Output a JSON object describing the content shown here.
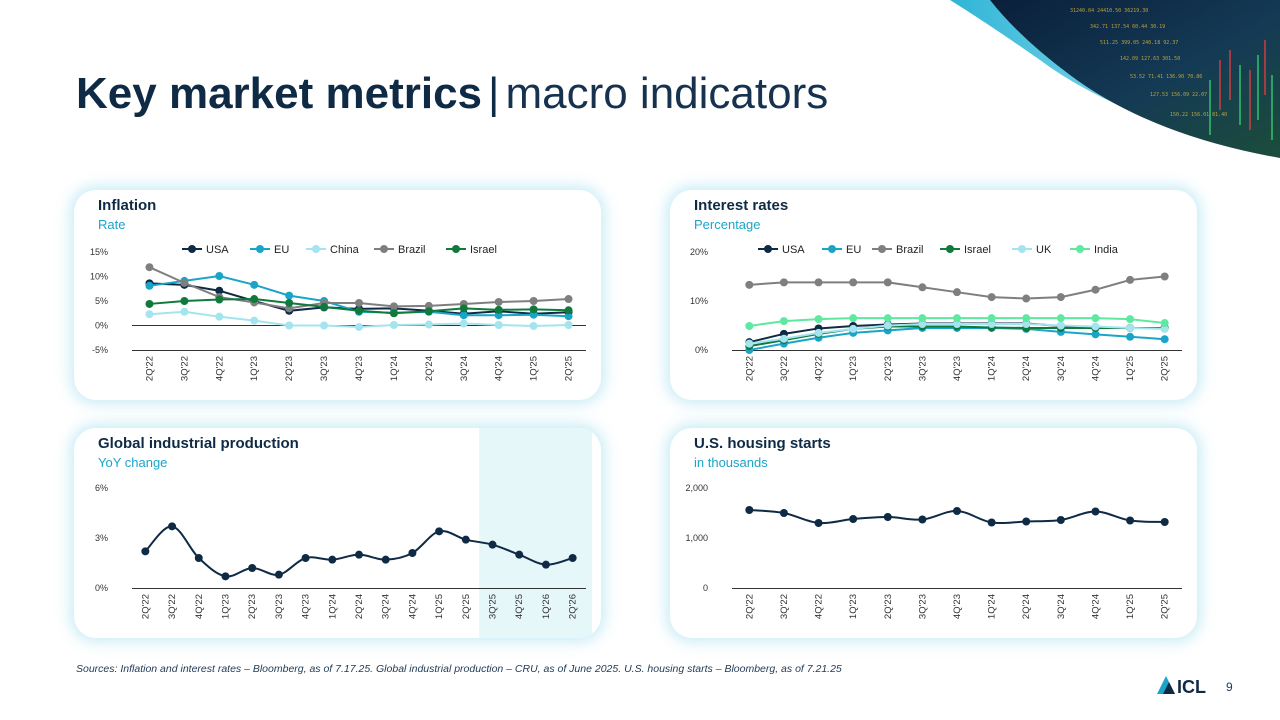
{
  "slide": {
    "title_bold": "Key market metrics",
    "title_sep": "|",
    "title_light": "macro indicators",
    "sources": "Sources: Inflation and interest rates – Bloomberg, as of 7.17.25. Global industrial production – CRU, as of June 2025. U.S. housing starts – Bloomberg, as of 7.21.25",
    "page_number": "9",
    "logo_text": "ICL",
    "brand_color": "#0f2a44",
    "accent_color": "#1aa5c8"
  },
  "charts": [
    {
      "title": "Inflation",
      "subtitle": "Rate",
      "type": "line",
      "categories": [
        "2Q'22",
        "3Q'22",
        "4Q'22",
        "1Q'23",
        "2Q'23",
        "3Q'23",
        "4Q'23",
        "1Q'24",
        "2Q'24",
        "3Q'24",
        "4Q'24",
        "1Q'25",
        "2Q'25"
      ],
      "ylim": [
        -5,
        15
      ],
      "yticks": [
        -5,
        0,
        5,
        10,
        15
      ],
      "ytick_labels": [
        "-5%",
        "0%",
        "5%",
        "10%",
        "15%"
      ],
      "zero_line": true,
      "legend_position": "top",
      "series": [
        {
          "name": "USA",
          "color": "#0f2a44",
          "values": [
            8.6,
            8.3,
            7.1,
            5.0,
            3.0,
            3.7,
            3.4,
            3.5,
            3.0,
            2.4,
            2.9,
            2.4,
            2.7
          ]
        },
        {
          "name": "EU",
          "color": "#1aa5c8",
          "values": [
            8.1,
            9.1,
            10.1,
            8.3,
            6.1,
            5.0,
            2.8,
            2.6,
            2.8,
            2.1,
            2.1,
            2.2,
            1.9
          ]
        },
        {
          "name": "China",
          "color": "#a3e4ef",
          "values": [
            2.3,
            2.8,
            1.8,
            1.0,
            0.0,
            0.0,
            -0.3,
            0.1,
            0.2,
            0.4,
            0.1,
            -0.1,
            0.1
          ]
        },
        {
          "name": "Brazil",
          "color": "#7f7f7f",
          "values": [
            11.9,
            8.7,
            5.8,
            4.7,
            3.5,
            4.6,
            4.6,
            3.9,
            4.0,
            4.4,
            4.8,
            5.0,
            5.4
          ]
        },
        {
          "name": "Israel",
          "color": "#0f7a3c",
          "values": [
            4.4,
            5.0,
            5.3,
            5.4,
            4.6,
            3.8,
            3.0,
            2.5,
            2.9,
            3.5,
            3.2,
            3.3,
            3.1
          ]
        }
      ]
    },
    {
      "title": "Interest rates",
      "subtitle": "Percentage",
      "type": "line",
      "categories": [
        "2Q'22",
        "3Q'22",
        "4Q'22",
        "1Q'23",
        "2Q'23",
        "3Q'23",
        "4Q'23",
        "1Q'24",
        "2Q'24",
        "3Q'24",
        "4Q'24",
        "1Q'25",
        "2Q'25"
      ],
      "ylim": [
        0,
        20
      ],
      "yticks": [
        0,
        10,
        20
      ],
      "ytick_labels": [
        "0%",
        "10%",
        "20%"
      ],
      "zero_line": false,
      "legend_position": "top",
      "series": [
        {
          "name": "USA",
          "color": "#0f2a44",
          "values": [
            1.6,
            3.3,
            4.4,
            4.9,
            5.2,
            5.4,
            5.4,
            5.4,
            5.4,
            4.9,
            4.5,
            4.5,
            4.5
          ]
        },
        {
          "name": "EU",
          "color": "#1aa5c8",
          "values": [
            0.0,
            1.3,
            2.5,
            3.5,
            4.0,
            4.5,
            4.5,
            4.5,
            4.3,
            3.7,
            3.2,
            2.7,
            2.2
          ]
        },
        {
          "name": "Brazil",
          "color": "#7f7f7f",
          "values": [
            13.3,
            13.8,
            13.8,
            13.8,
            13.8,
            12.8,
            11.8,
            10.8,
            10.5,
            10.8,
            12.3,
            14.3,
            15.0
          ]
        },
        {
          "name": "Israel",
          "color": "#0f7a3c",
          "values": [
            0.8,
            2.0,
            3.3,
            4.3,
            4.8,
            4.8,
            4.8,
            4.6,
            4.5,
            4.5,
            4.5,
            4.5,
            4.5
          ]
        },
        {
          "name": "UK",
          "color": "#a3e4ef",
          "values": [
            1.3,
            2.3,
            3.5,
            4.3,
            5.0,
            5.3,
            5.3,
            5.3,
            5.3,
            5.0,
            4.8,
            4.5,
            4.3
          ]
        },
        {
          "name": "India",
          "color": "#5fe8a0",
          "values": [
            4.9,
            5.9,
            6.3,
            6.5,
            6.5,
            6.5,
            6.5,
            6.5,
            6.5,
            6.5,
            6.5,
            6.3,
            5.5
          ]
        }
      ]
    },
    {
      "title": "Global industrial production",
      "subtitle": "YoY change",
      "type": "line",
      "categories": [
        "2Q'22",
        "3Q'22",
        "4Q'22",
        "1Q'23",
        "2Q'23",
        "3Q'23",
        "4Q'23",
        "1Q'24",
        "2Q'24",
        "3Q'24",
        "4Q'24",
        "1Q'25",
        "2Q'25",
        "3Q'25",
        "4Q'25",
        "1Q'26",
        "2Q'26"
      ],
      "ylim": [
        0,
        6
      ],
      "yticks": [
        0,
        3,
        6
      ],
      "ytick_labels": [
        "0%",
        "3%",
        "6%"
      ],
      "zero_line": false,
      "legend_position": "none",
      "highlight_from_index": 13,
      "highlight_color": "#e6f7fa",
      "series": [
        {
          "color": "#0f2a44",
          "values": [
            2.2,
            3.7,
            1.8,
            0.7,
            1.2,
            0.8,
            1.8,
            1.7,
            2.0,
            1.7,
            2.1,
            3.4,
            2.9,
            2.6,
            2.0,
            1.4,
            1.8
          ]
        }
      ]
    },
    {
      "title": "U.S. housing starts",
      "subtitle": "in thousands",
      "type": "line",
      "categories": [
        "2Q'22",
        "3Q'22",
        "4Q'22",
        "1Q'23",
        "2Q'23",
        "3Q'23",
        "4Q'23",
        "1Q'24",
        "2Q'24",
        "3Q'24",
        "4Q'24",
        "1Q'25",
        "2Q'25"
      ],
      "ylim": [
        0,
        2000
      ],
      "yticks": [
        0,
        1000,
        2000
      ],
      "ytick_labels": [
        "0",
        "1,000",
        "2,000"
      ],
      "zero_line": false,
      "legend_position": "none",
      "series": [
        {
          "color": "#0f2a44",
          "values": [
            1560,
            1500,
            1300,
            1380,
            1420,
            1370,
            1540,
            1310,
            1330,
            1360,
            1530,
            1350,
            1320
          ]
        }
      ]
    }
  ]
}
